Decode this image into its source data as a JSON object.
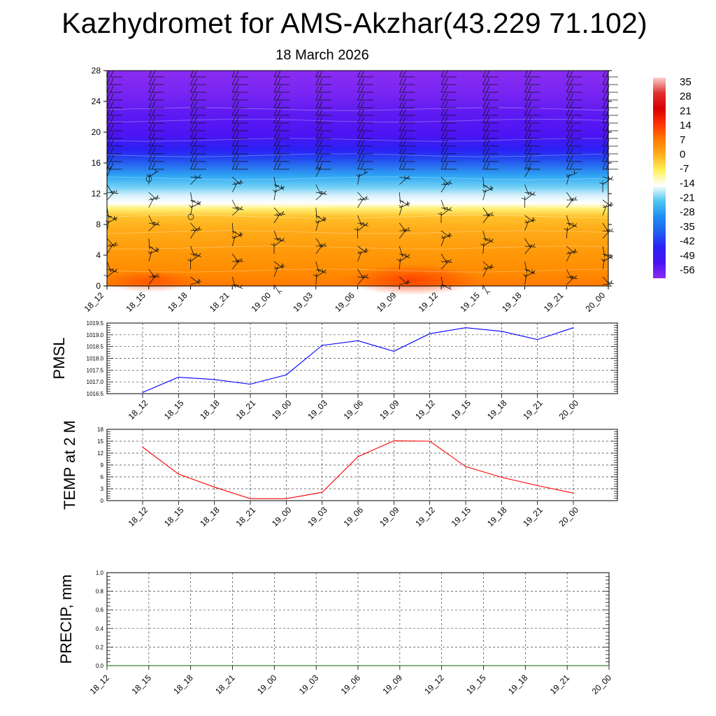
{
  "title": "Kazhydromet for AMS-Akzhar(43.229 71.102)",
  "subtitle": "18 March 2026",
  "chart_data": [
    {
      "type": "heatmap",
      "name": "vertical-cross-section",
      "x": [
        "18_12",
        "18_15",
        "18_18",
        "18_21",
        "19_00",
        "19_03",
        "19_06",
        "19_09",
        "19_12",
        "19_15",
        "19_18",
        "19_21",
        "20_00"
      ],
      "yticks": [
        0,
        4,
        8,
        12,
        16,
        20,
        24,
        28
      ],
      "ylim": [
        0,
        28
      ],
      "colorbar": {
        "labels": [
          "35",
          "28",
          "21",
          "14",
          "7",
          "0",
          "-7",
          "-14",
          "-21",
          "-28",
          "-35",
          "-42",
          "-49",
          "-56"
        ],
        "colors": [
          "#fbd0d0",
          "#e03030",
          "#d80000",
          "#ff3000",
          "#ff7a00",
          "#ffb020",
          "#fff25a",
          "#ffffff",
          "#4fc6f2",
          "#1f8ff0",
          "#2060f0",
          "#2a22f5",
          "#4b12f2",
          "#8a2cf2"
        ]
      },
      "wind_barbs": true
    },
    {
      "type": "line",
      "name": "pmsl",
      "ylabel": "PMSL",
      "x": [
        "18_12",
        "18_15",
        "18_18",
        "18_21",
        "19_00",
        "19_03",
        "19_06",
        "19_09",
        "19_12",
        "19_15",
        "19_18",
        "19_21",
        "20_00"
      ],
      "series": [
        {
          "values": [
            1016.55,
            1017.2,
            1017.1,
            1016.9,
            1017.3,
            1018.55,
            1018.75,
            1018.3,
            1019.05,
            1019.3,
            1019.15,
            1018.8,
            1019.3
          ],
          "color": "#0000ff"
        }
      ],
      "ylim": [
        1016.5,
        1019.5
      ],
      "yticks": [
        "1016.5",
        "1017.0",
        "1017.5",
        "1018.0",
        "1018.5",
        "1019.0",
        "1019.5"
      ]
    },
    {
      "type": "line",
      "name": "temp2m",
      "ylabel": "TEMP at 2 M",
      "x": [
        "18_12",
        "18_15",
        "18_18",
        "18_21",
        "19_00",
        "19_03",
        "19_06",
        "19_09",
        "19_12",
        "19_15",
        "19_18",
        "19_21",
        "20_00"
      ],
      "series": [
        {
          "values": [
            13.5,
            6.7,
            3.4,
            0.5,
            0.5,
            2.1,
            11.1,
            15.1,
            15.0,
            8.6,
            5.9,
            3.8,
            1.9
          ],
          "color": "#ff0000"
        }
      ],
      "ylim": [
        0,
        18
      ],
      "yticks": [
        "0",
        "3",
        "6",
        "9",
        "12",
        "15",
        "18"
      ]
    },
    {
      "type": "line",
      "name": "precip",
      "ylabel": "PRECIP, mm",
      "x": [
        "18_12",
        "18_15",
        "18_18",
        "18_21",
        "19_00",
        "19_03",
        "19_06",
        "19_09",
        "19_12",
        "19_15",
        "19_18",
        "19_21",
        "20_00"
      ],
      "series": [
        {
          "values": [
            0,
            0,
            0,
            0,
            0,
            0,
            0,
            0,
            0,
            0,
            0,
            0,
            0
          ],
          "color": "#006400"
        }
      ],
      "ylim": [
        0,
        1
      ],
      "yticks": [
        "0.0",
        "0.2",
        "0.4",
        "0.6",
        "0.8",
        "1.0"
      ]
    }
  ]
}
